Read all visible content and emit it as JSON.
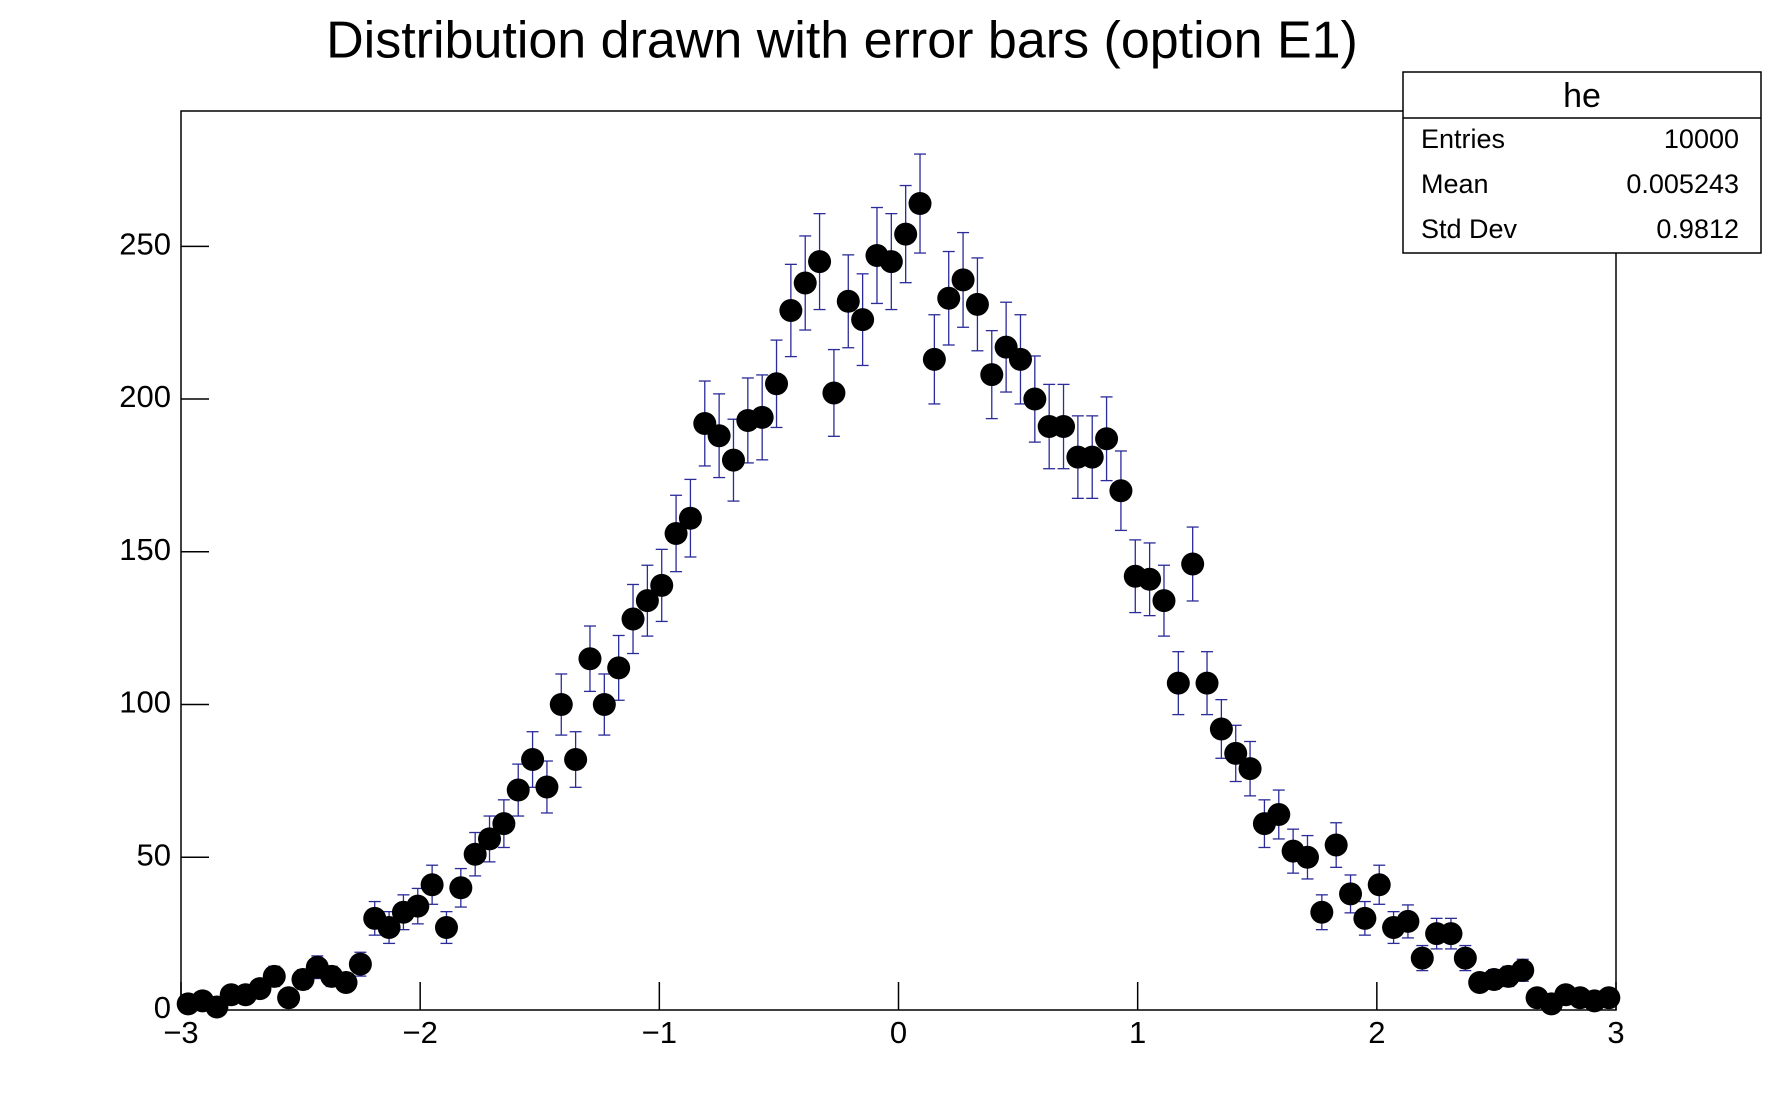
{
  "chart_data": {
    "type": "histogram",
    "title": "Distribution drawn with error bars (option E1)",
    "bins": [
      -3,
      -2.94,
      -2.88,
      -2.82,
      -2.76,
      -2.7,
      -2.64,
      -2.58,
      -2.52,
      -2.46,
      -2.4,
      -2.34,
      -2.28,
      -2.22,
      -2.16,
      -2.1,
      -2.04,
      -1.98,
      -1.92,
      -1.86,
      -1.8,
      -1.74,
      -1.68,
      -1.62,
      -1.56,
      -1.5,
      -1.44,
      -1.38,
      -1.32,
      -1.26,
      -1.2,
      -1.14,
      -1.08,
      -1.02,
      -0.96,
      -0.9,
      -0.84,
      -0.78,
      -0.72,
      -0.66,
      -0.6,
      -0.54,
      -0.48,
      -0.42,
      -0.36,
      -0.3,
      -0.24,
      -0.18,
      -0.12,
      -0.06,
      0,
      0.06,
      0.12,
      0.18,
      0.24,
      0.3,
      0.36,
      0.42,
      0.48,
      0.54,
      0.6,
      0.66,
      0.72,
      0.78,
      0.84,
      0.9,
      0.96,
      1.02,
      1.08,
      1.14,
      1.2,
      1.26,
      1.32,
      1.38,
      1.44,
      1.5,
      1.56,
      1.62,
      1.68,
      1.74,
      1.8,
      1.86,
      1.92,
      1.98,
      2.04,
      2.1,
      2.16,
      2.22,
      2.28,
      2.34,
      2.4,
      2.46,
      2.52,
      2.58,
      2.64,
      2.7,
      2.76,
      2.82,
      2.88,
      2.94,
      3
    ],
    "values": [
      2,
      3,
      1,
      5,
      5,
      7,
      11,
      4,
      10,
      14,
      11,
      9,
      15,
      30,
      27,
      32,
      34,
      41,
      27,
      40,
      51,
      56,
      61,
      72,
      82,
      73,
      100,
      82,
      115,
      100,
      112,
      128,
      134,
      139,
      156,
      161,
      192,
      188,
      180,
      193,
      194,
      205,
      229,
      238,
      245,
      202,
      232,
      226,
      247,
      245,
      254,
      264,
      213,
      233,
      239,
      231,
      208,
      217,
      213,
      200,
      191,
      191,
      181,
      181,
      187,
      170,
      142,
      141,
      134,
      107,
      146,
      107,
      92,
      84,
      79,
      61,
      64,
      52,
      50,
      32,
      54,
      38,
      30,
      41,
      27,
      29,
      17,
      25,
      25,
      17,
      9,
      10,
      11,
      13,
      4,
      2,
      5,
      4,
      3,
      4
    ],
    "errors": [
      1.4,
      1.7,
      1,
      2.2,
      2.2,
      2.6,
      3.3,
      2,
      3.2,
      3.7,
      3.3,
      3,
      3.9,
      5.5,
      5.2,
      5.7,
      5.8,
      6.4,
      5.2,
      6.3,
      7.1,
      7.5,
      7.8,
      8.5,
      9.1,
      8.5,
      10,
      9.1,
      10.7,
      10,
      10.6,
      11.3,
      11.6,
      11.8,
      12.5,
      12.7,
      13.9,
      13.7,
      13.4,
      13.9,
      13.9,
      14.3,
      15.1,
      15.4,
      15.7,
      14.2,
      15.2,
      15,
      15.7,
      15.7,
      15.9,
      16.2,
      14.6,
      15.3,
      15.5,
      15.2,
      14.4,
      14.7,
      14.6,
      14.1,
      13.8,
      13.8,
      13.5,
      13.5,
      13.7,
      13,
      11.9,
      11.9,
      11.6,
      10.3,
      12.1,
      10.3,
      9.6,
      9.2,
      8.9,
      7.8,
      8,
      7.2,
      7.1,
      5.7,
      7.3,
      6.2,
      5.5,
      6.4,
      5.2,
      5.4,
      4.1,
      5,
      5,
      4.1,
      3,
      3.2,
      3.3,
      3.6,
      2,
      1.4,
      2.2,
      2,
      1.7,
      2
    ],
    "color": "#000000",
    "error_color": "#2b2b99",
    "xlim": [
      -3,
      3
    ],
    "ylim": [
      0,
      294.3
    ],
    "xticks": [
      {
        "value": -3,
        "label": "−3"
      },
      {
        "value": -2,
        "label": "−2"
      },
      {
        "value": -1,
        "label": "−1"
      },
      0,
      1,
      2,
      3
    ],
    "yticks": [
      0,
      50,
      100,
      150,
      200,
      250
    ],
    "stats": {
      "title": "he",
      "rows": [
        {
          "label": "Entries",
          "value": "10000"
        },
        {
          "label": "Mean",
          "value": "0.005243"
        },
        {
          "label": "Std Dev",
          "value": "0.9812"
        }
      ]
    }
  }
}
